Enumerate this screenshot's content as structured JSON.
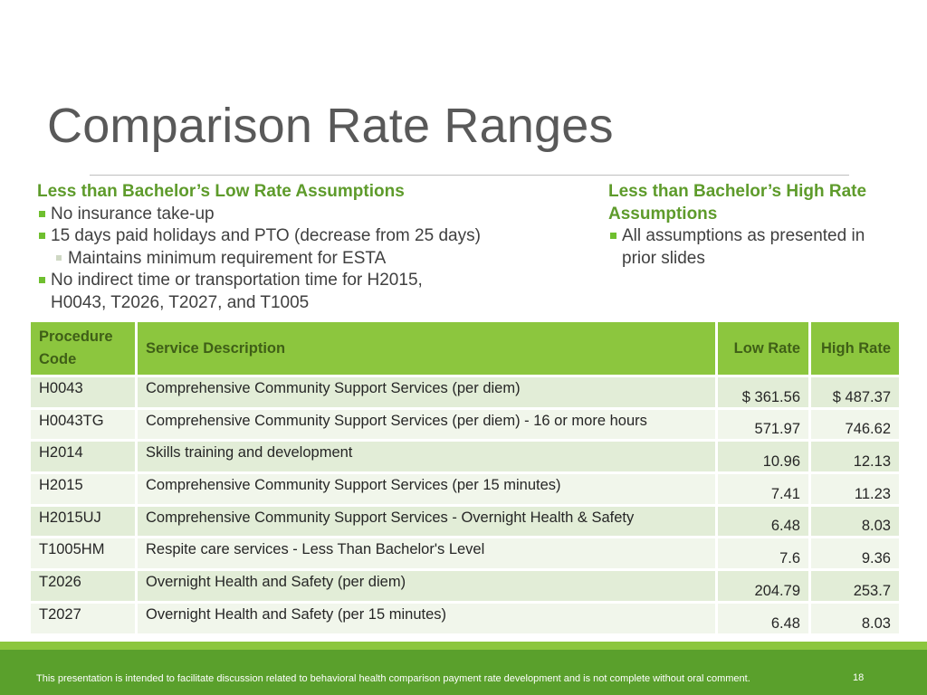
{
  "title": "Comparison Rate Ranges",
  "left": {
    "heading": "Less than Bachelor’s Low Rate Assumptions",
    "bullets": [
      "No insurance take-up",
      "15 days paid holidays and PTO (decrease from 25 days)",
      "Maintains minimum requirement for ESTA",
      "No indirect time or transportation time for H2015, H0043, T2026, T2027, and T1005"
    ]
  },
  "right": {
    "heading": "Less than Bachelor’s High Rate Assumptions",
    "bullets": [
      "All assumptions as presented in prior slides"
    ]
  },
  "table": {
    "headers": [
      "Procedure Code",
      "Service Description",
      "Low Rate",
      "High Rate"
    ],
    "rows": [
      {
        "code": "H0043",
        "desc": "Comprehensive Community Support Services (per diem)",
        "low": "$ 361.56",
        "high": "$ 487.37"
      },
      {
        "code": "H0043TG",
        "desc": "Comprehensive Community Support Services (per diem) - 16 or more hours",
        "low": "571.97",
        "high": "746.62"
      },
      {
        "code": "H2014",
        "desc": "Skills training and development",
        "low": "10.96",
        "high": "12.13"
      },
      {
        "code": "H2015",
        "desc": "Comprehensive Community Support Services (per 15 minutes)",
        "low": "7.41",
        "high": "11.23"
      },
      {
        "code": "H2015UJ",
        "desc": "Comprehensive Community Support Services - Overnight Health & Safety",
        "low": "6.48",
        "high": "8.03"
      },
      {
        "code": "T1005HM",
        "desc": "Respite care services - Less Than Bachelor's Level",
        "low": "7.6",
        "high": "9.36"
      },
      {
        "code": "T2026",
        "desc": "Overnight Health and Safety (per diem)",
        "low": "204.79",
        "high": "253.7"
      },
      {
        "code": "T2027",
        "desc": "Overnight Health and Safety (per 15 minutes)",
        "low": "6.48",
        "high": "8.03"
      }
    ]
  },
  "footer": {
    "note": "This presentation is intended to facilitate discussion related to behavioral health comparison payment rate development and is not complete without oral comment.",
    "page": "18"
  }
}
